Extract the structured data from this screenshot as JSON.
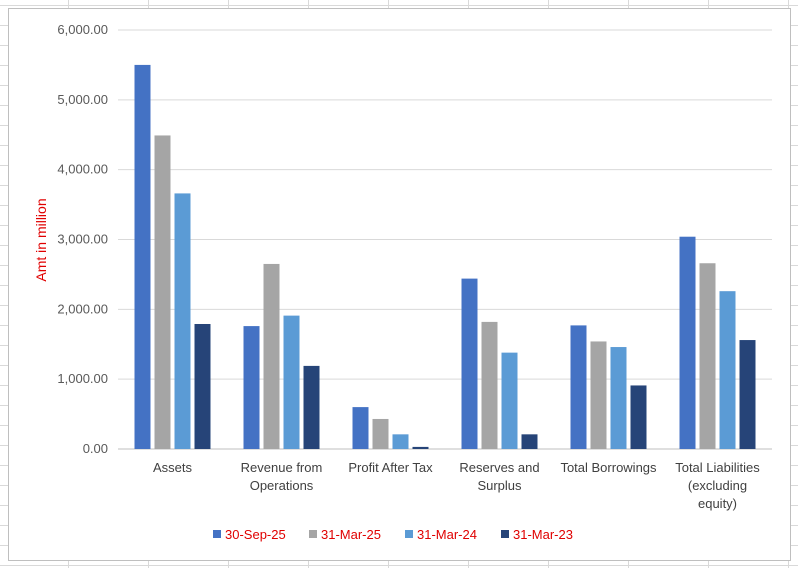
{
  "chart_data": {
    "type": "bar",
    "ylabel": "Amt in million",
    "ylim": [
      0,
      6000
    ],
    "yticks": [
      0,
      1000,
      2000,
      3000,
      4000,
      5000,
      6000
    ],
    "ytick_labels": [
      "0.00",
      "1,000.00",
      "2,000.00",
      "3,000.00",
      "4,000.00",
      "5,000.00",
      "6,000.00"
    ],
    "grid": true,
    "legend_position": "bottom",
    "categories": [
      [
        "Assets"
      ],
      [
        "Revenue from",
        "Operations"
      ],
      [
        "Profit After Tax"
      ],
      [
        "Reserves and",
        "Surplus"
      ],
      [
        "Total Borrowings"
      ],
      [
        "Total Liabilities",
        "(excluding",
        "equity)"
      ]
    ],
    "series": [
      {
        "name": "30-Sep-25",
        "color": "#4472c4",
        "values": [
          5500,
          1760,
          600,
          2440,
          1770,
          3040
        ]
      },
      {
        "name": "31-Mar-25",
        "color": "#a5a5a5",
        "values": [
          4490,
          2650,
          430,
          1820,
          1540,
          2660
        ]
      },
      {
        "name": "31-Mar-24",
        "color": "#5b9bd5",
        "values": [
          3660,
          1910,
          210,
          1380,
          1460,
          2260
        ]
      },
      {
        "name": "31-Mar-23",
        "color": "#264478",
        "values": [
          1790,
          1190,
          30,
          210,
          910,
          1560
        ]
      }
    ]
  }
}
